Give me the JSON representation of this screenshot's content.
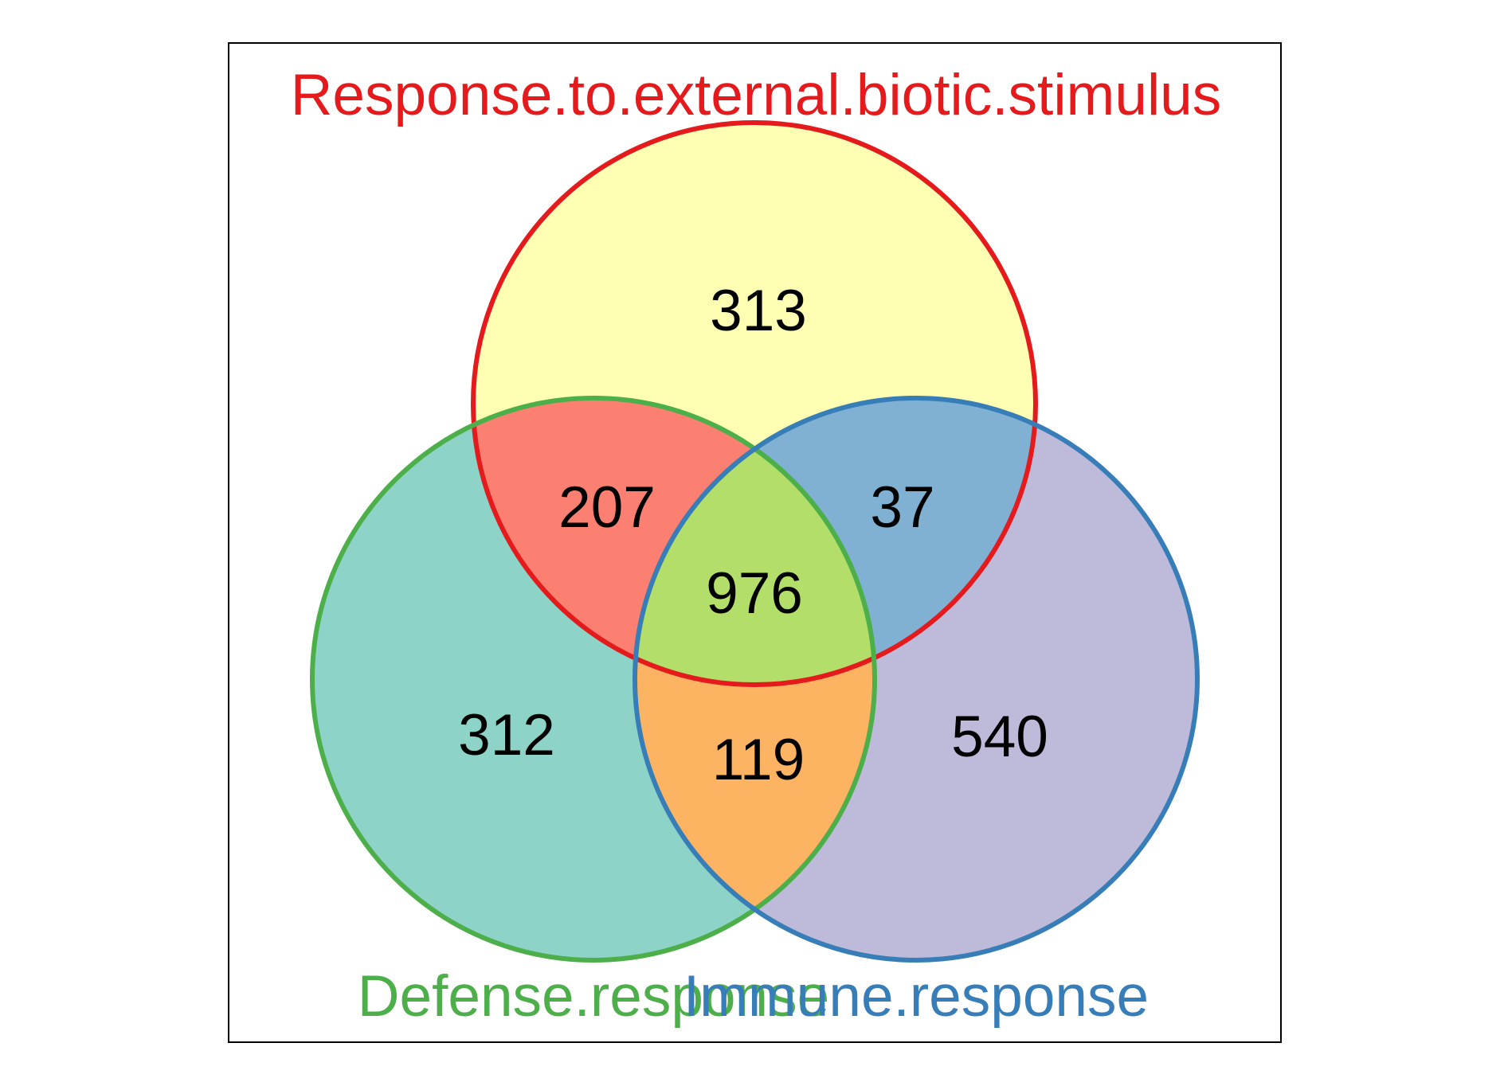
{
  "sets": [
    {
      "key": "a",
      "name": "Response.to.external.biotic.stimulus",
      "stroke": "#E41A1C",
      "fill": "#FFFFB3"
    },
    {
      "key": "b",
      "name": "Defense.response",
      "stroke": "#4DAF4A",
      "fill": "#8DD3C7"
    },
    {
      "key": "c",
      "name": "Immune.response",
      "stroke": "#377EB8",
      "fill": "#BEBADA"
    }
  ],
  "regions": {
    "a_only": {
      "label": "313",
      "fill": "#FFFFB3"
    },
    "b_only": {
      "label": "312",
      "fill": "#8DD3C7"
    },
    "c_only": {
      "label": "540",
      "fill": "#BEBADA"
    },
    "ab": {
      "label": "207",
      "fill": "#FB8072"
    },
    "ac": {
      "label": "37",
      "fill": "#80B1D3"
    },
    "bc": {
      "label": "119",
      "fill": "#FDB462"
    },
    "abc": {
      "label": "976",
      "fill": "#B3DE69"
    }
  }
}
